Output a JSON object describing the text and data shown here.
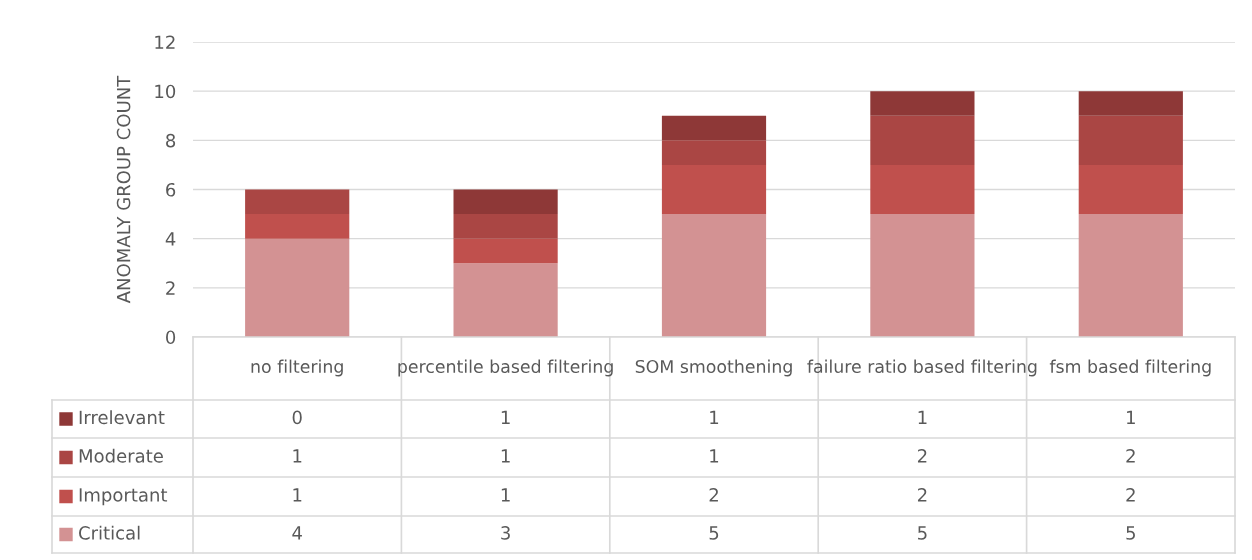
{
  "chart_data": {
    "type": "bar",
    "stacked": true,
    "ylabel": "ANOMALY GROUP COUNT",
    "categories": [
      "no filtering",
      "percentile based filtering",
      "SOM smoothening",
      "failure ratio based filtering",
      "fsm based filtering"
    ],
    "series": [
      {
        "name": "Critical",
        "color": "#d39293",
        "values": [
          4,
          3,
          5,
          5,
          5
        ]
      },
      {
        "name": "Important",
        "color": "#c0504d",
        "values": [
          1,
          1,
          2,
          2,
          2
        ]
      },
      {
        "name": "Moderate",
        "color": "#aa4644",
        "values": [
          1,
          1,
          1,
          2,
          2
        ]
      },
      {
        "name": "Irrelevant",
        "color": "#8e3837",
        "values": [
          0,
          1,
          1,
          1,
          1
        ]
      }
    ],
    "ylim": [
      0,
      12
    ],
    "yticks": [
      0,
      2,
      4,
      6,
      8,
      10,
      12
    ],
    "grid": "y",
    "data_labels": true,
    "legend": "bottom"
  }
}
